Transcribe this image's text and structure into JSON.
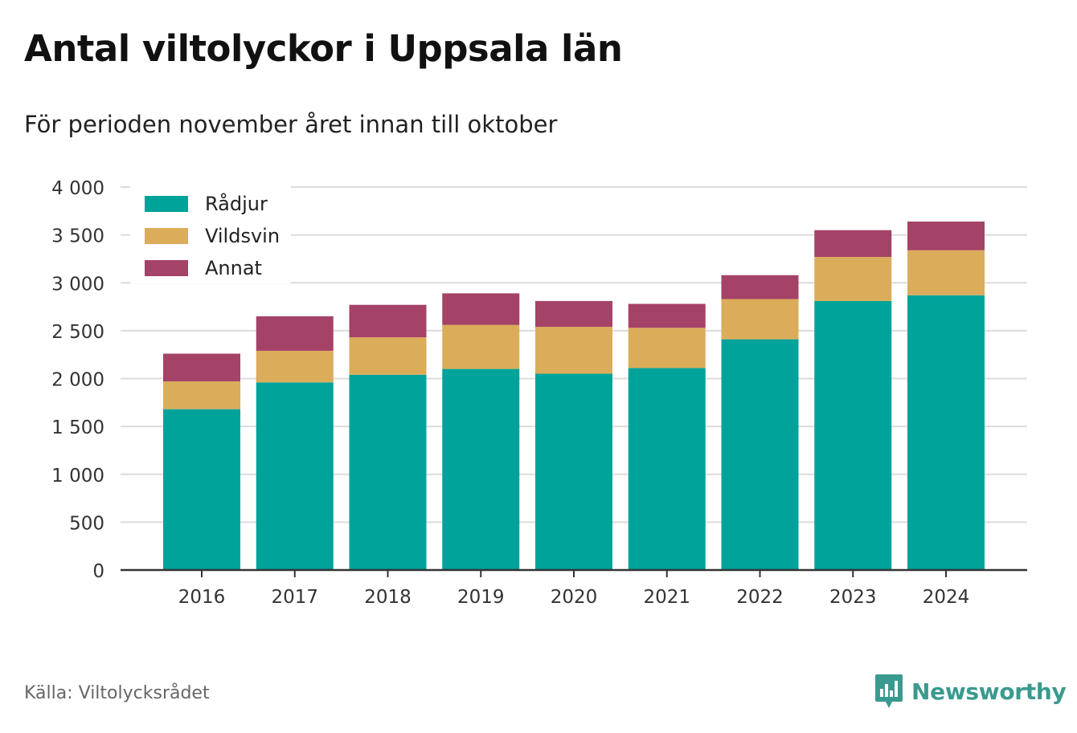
{
  "header": {
    "title": "Antal viltolyckor i Uppsala län",
    "subtitle": "För perioden november året innan till oktober"
  },
  "footer": {
    "source": "Källa: Viltolycksrådet",
    "brand": "Newsworthy"
  },
  "colors": {
    "radjur": "#00a39a",
    "vildsvin": "#dbac5a",
    "annat": "#a54268",
    "grid": "#dcdcdc",
    "axis": "#333333",
    "brand": "#3a9a8f"
  },
  "chart_data": {
    "type": "bar",
    "stacked": true,
    "categories": [
      "2016",
      "2017",
      "2018",
      "2019",
      "2020",
      "2021",
      "2022",
      "2023",
      "2024"
    ],
    "series": [
      {
        "name": "Rådjur",
        "color": "#00a39a",
        "values": [
          1680,
          1960,
          2040,
          2100,
          2050,
          2110,
          2410,
          2810,
          2870
        ]
      },
      {
        "name": "Vildsvin",
        "color": "#dbac5a",
        "values": [
          290,
          330,
          390,
          460,
          490,
          420,
          420,
          460,
          470
        ]
      },
      {
        "name": "Annat",
        "color": "#a54268",
        "values": [
          290,
          360,
          340,
          330,
          270,
          250,
          250,
          280,
          300
        ]
      }
    ],
    "ylim": [
      0,
      4000
    ],
    "yticks": [
      0,
      500,
      1000,
      1500,
      2000,
      2500,
      3000,
      3500,
      4000
    ],
    "ytick_labels": [
      "0",
      "500",
      "1 000",
      "1 500",
      "2 000",
      "2 500",
      "3 000",
      "3 500",
      "4 000"
    ],
    "grid": true,
    "legend_position": "top-left"
  }
}
